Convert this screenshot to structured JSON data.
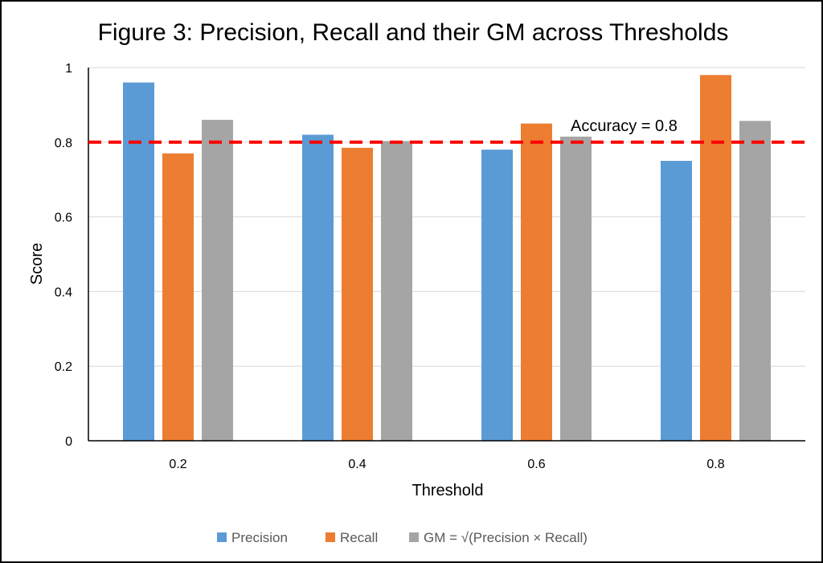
{
  "chart_data": {
    "type": "bar",
    "title": "Figure 3: Precision, Recall and their GM across Thresholds",
    "xlabel": "Threshold",
    "ylabel": "Score",
    "categories": [
      "0.2",
      "0.4",
      "0.6",
      "0.8"
    ],
    "ylim": [
      0,
      1
    ],
    "yticks": [
      0,
      0.2,
      0.4,
      0.6,
      0.8,
      1
    ],
    "ytick_labels": [
      "0",
      "0.2",
      "0.4",
      "0.6",
      "0.8",
      "1"
    ],
    "grid": true,
    "legend": "bottom",
    "series": [
      {
        "name": "Precision",
        "color": "#5B9BD5",
        "values": [
          0.96,
          0.82,
          0.78,
          0.75
        ]
      },
      {
        "name": "Recall",
        "color": "#ED7D31",
        "values": [
          0.77,
          0.785,
          0.85,
          0.98
        ]
      },
      {
        "name": "GM = √(Precision × Recall)",
        "color": "#A5A5A5",
        "values": [
          0.86,
          0.803,
          0.815,
          0.857
        ]
      }
    ],
    "reference_line": {
      "value": 0.8,
      "label": "Accuracy = 0.8",
      "color": "#FF0000",
      "style": "dashed"
    }
  }
}
